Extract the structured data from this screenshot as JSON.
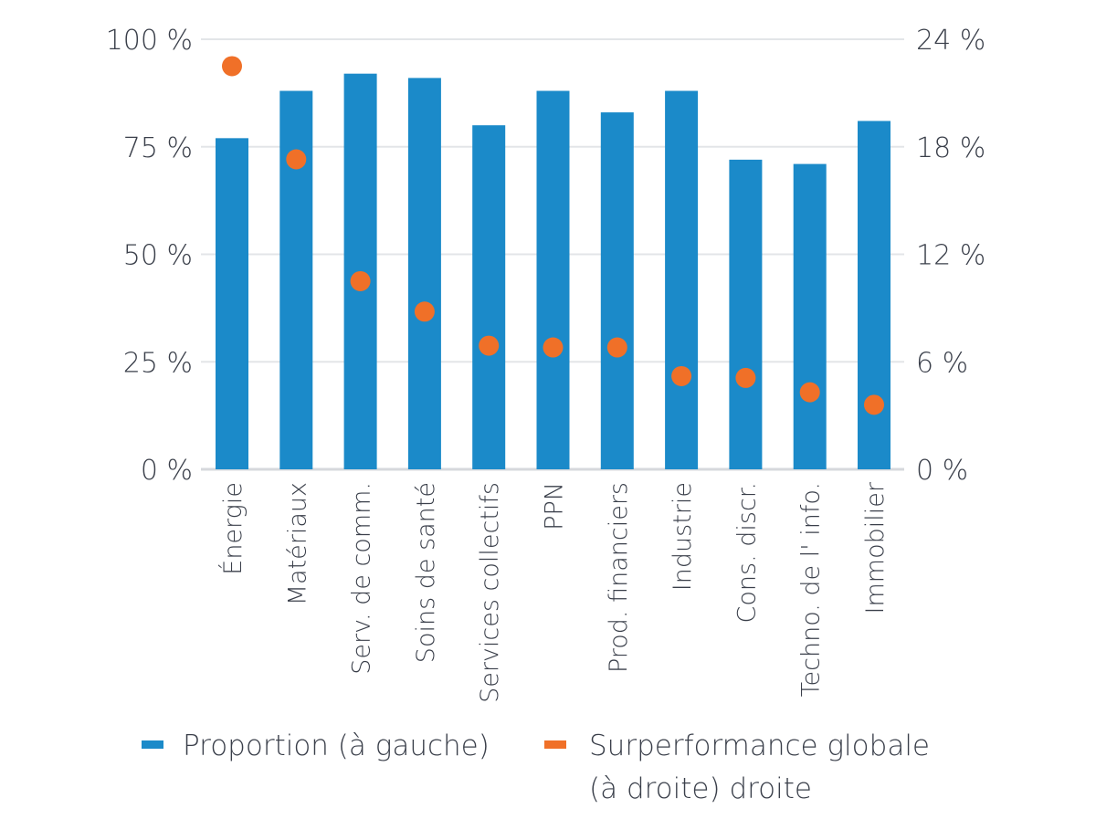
{
  "chart_data": {
    "type": "bar",
    "categories": [
      "Énergie",
      "Matériaux",
      "Serv. de comm.",
      "Soins de santé",
      "Services collectifs",
      "PPN",
      "Prod. financiers",
      "Industrie",
      "Cons. discr.",
      "Techno. de l' info.",
      "Immobilier"
    ],
    "series": [
      {
        "name": "Proportion (à gauche)",
        "type": "bar",
        "axis": "left",
        "color": "#1b8ac9",
        "values": [
          77,
          88,
          92,
          91,
          80,
          88,
          83,
          88,
          72,
          71,
          81
        ]
      },
      {
        "name": "Superformance globale (à droite) droite",
        "type": "scatter",
        "axis": "right",
        "color": "#f07028",
        "values": [
          22.5,
          17.3,
          10.5,
          8.8,
          6.9,
          6.8,
          6.8,
          5.2,
          5.1,
          4.3,
          3.6
        ]
      }
    ],
    "y_left": {
      "ylim": [
        0,
        100
      ],
      "ticks": [
        0,
        25,
        50,
        75,
        100
      ],
      "tick_labels": [
        "0 %",
        "25 %",
        "50 %",
        "75 %",
        "100 %"
      ]
    },
    "y_right": {
      "ylim": [
        0,
        24
      ],
      "ticks": [
        0,
        6,
        12,
        18,
        24
      ],
      "tick_labels": [
        "0 %",
        "6 %",
        "12 %",
        "18 %",
        "24 %"
      ]
    },
    "grid": true,
    "legend_position": "bottom",
    "legend": [
      {
        "lines": [
          "Proportion (à gauche)"
        ],
        "color": "#1b8ac9"
      },
      {
        "lines": [
          "Surperformance globale",
          "(à droite) droite"
        ],
        "color": "#f07028"
      }
    ],
    "title": "",
    "xlabel": "",
    "ylabel": ""
  }
}
